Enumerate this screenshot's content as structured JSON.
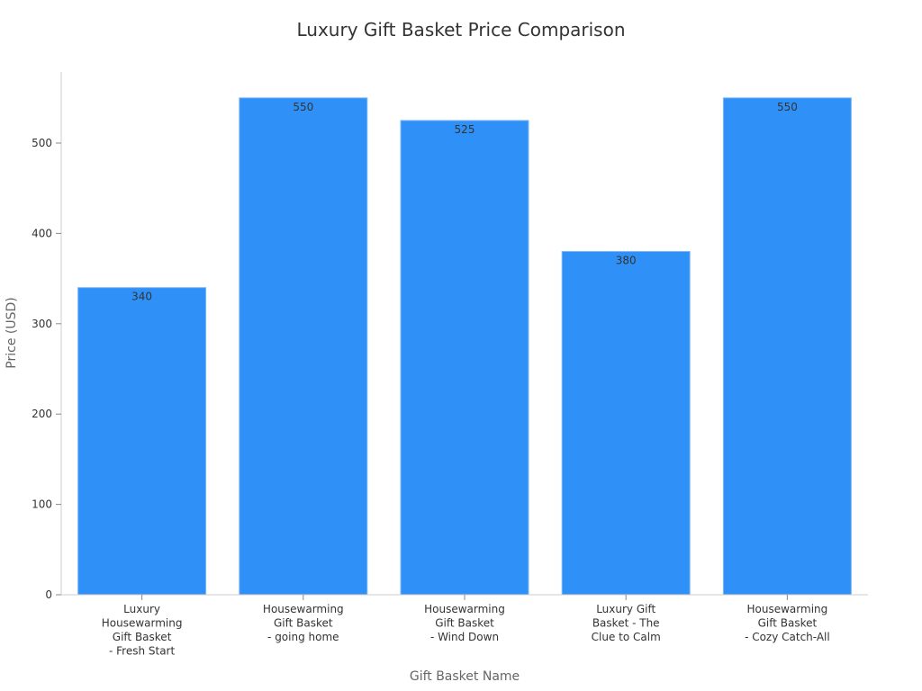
{
  "chart_data": {
    "type": "bar",
    "title": "Luxury Gift Basket Price Comparison",
    "xlabel": "Gift Basket Name",
    "ylabel": "Price (USD)",
    "categories": [
      "Luxury Housewarming Gift Basket - Fresh Start",
      "Housewarming Gift Basket - going home",
      "Housewarming Gift Basket - Wind Down",
      "Luxury Gift Basket - The Clue to Calm",
      "Housewarming Gift Basket - Cozy Catch-All"
    ],
    "category_label_lines": [
      [
        "Luxury",
        "Housewarming",
        "Gift Basket",
        "- Fresh Start"
      ],
      [
        "Housewarming",
        "Gift Basket",
        "- going home"
      ],
      [
        "Housewarming",
        "Gift Basket",
        "- Wind Down"
      ],
      [
        "Luxury Gift",
        "Basket - The",
        "Clue to Calm"
      ],
      [
        "Housewarming",
        "Gift Basket",
        "- Cozy Catch-All"
      ]
    ],
    "values": [
      340,
      550,
      525,
      380,
      550
    ],
    "ylim": [
      0,
      580
    ],
    "yticks": [
      0,
      100,
      200,
      300,
      400,
      500
    ],
    "grid": false,
    "bar_color": "#2f91f8",
    "bar_edge_color": "#7fb8f7"
  }
}
